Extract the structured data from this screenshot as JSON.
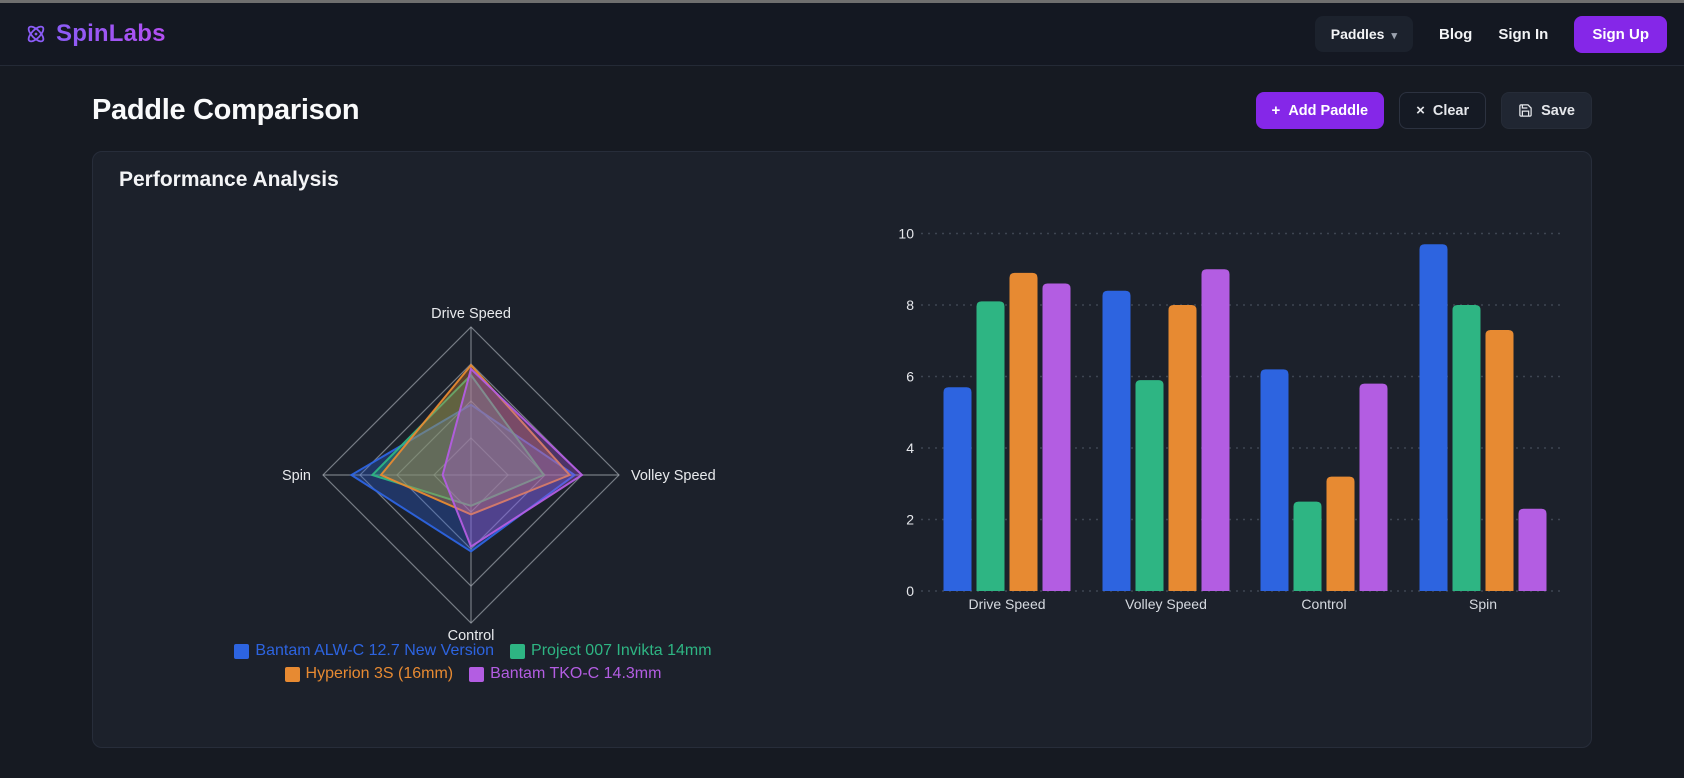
{
  "nav": {
    "brand": "SpinLabs",
    "paddles_label": "Paddles",
    "blog_label": "Blog",
    "signin_label": "Sign In",
    "signup_label": "Sign Up"
  },
  "header": {
    "title": "Paddle Comparison",
    "add_button": "Add Paddle",
    "clear_button": "Clear",
    "save_button": "Save"
  },
  "card": {
    "title": "Performance Analysis"
  },
  "colors": {
    "accent_purple": "#8527e8",
    "page_bg": "#161a22",
    "card_bg": "#1c212b",
    "grid_gray": "#a8adb5",
    "series_blue": "#2d64e0",
    "series_green": "#2eb583",
    "series_orange": "#e78a32",
    "series_purple": "#b35de2"
  },
  "chart_data": [
    {
      "type": "radar",
      "axes": [
        "Drive Speed",
        "Volley Speed",
        "Control",
        "Spin"
      ],
      "rmax": 12,
      "grid_rings": [
        3,
        6,
        9,
        12
      ],
      "legend_position": "bottom",
      "series": [
        {
          "name": "Bantam ALW-C 12.7 New Version",
          "color": "#2d64e0",
          "values": [
            5.7,
            8.4,
            6.2,
            9.7
          ]
        },
        {
          "name": "Project 007 Invikta 14mm",
          "color": "#2eb583",
          "values": [
            8.1,
            5.9,
            2.5,
            8.0
          ]
        },
        {
          "name": "Hyperion 3S (16mm)",
          "color": "#e78a32",
          "values": [
            8.9,
            8.0,
            3.2,
            7.3
          ]
        },
        {
          "name": "Bantam TKO-C 14.3mm",
          "color": "#b35de2",
          "values": [
            8.6,
            9.0,
            5.8,
            2.3
          ]
        }
      ]
    },
    {
      "type": "bar",
      "categories": [
        "Drive Speed",
        "Volley Speed",
        "Control",
        "Spin"
      ],
      "ylim": [
        0,
        10
      ],
      "yticks": [
        0,
        2,
        4,
        6,
        8,
        10
      ],
      "grid": "dotted horizontal",
      "series": [
        {
          "name": "Bantam ALW-C 12.7 New Version",
          "color": "#2d64e0",
          "values": [
            5.7,
            8.4,
            6.2,
            9.7
          ]
        },
        {
          "name": "Project 007 Invikta 14mm",
          "color": "#2eb583",
          "values": [
            8.1,
            5.9,
            2.5,
            8.0
          ]
        },
        {
          "name": "Hyperion 3S (16mm)",
          "color": "#e78a32",
          "values": [
            8.9,
            8.0,
            3.2,
            7.3
          ]
        },
        {
          "name": "Bantam TKO-C 14.3mm",
          "color": "#b35de2",
          "values": [
            8.6,
            9.0,
            5.8,
            2.3
          ]
        }
      ]
    }
  ]
}
